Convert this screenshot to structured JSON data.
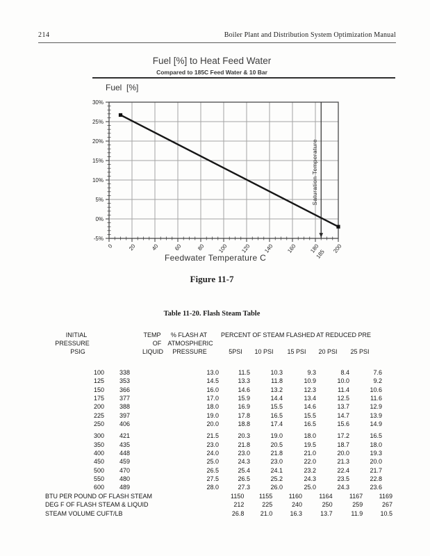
{
  "page": {
    "number": "214",
    "header": "Boiler Plant and Distribution System Optimization Manual"
  },
  "figure": {
    "title": "Fuel [%] to Heat Feed Water",
    "subtitle": "Compared to 185C Feed Water & 10 Bar",
    "y_axis_label": "Fuel  [%]",
    "x_axis_label": "Feedwater Temperature C",
    "caption": "Figure 11-7",
    "annotation": "Saturation Temperature"
  },
  "chart_data": {
    "type": "line",
    "title": "Fuel [%] to Heat Feed Water",
    "subtitle": "Compared to 185C Feed Water & 10 Bar",
    "xlabel": "Feedwater Temperature C",
    "ylabel": "Fuel [%]",
    "xlim": [
      0,
      200
    ],
    "ylim": [
      -5,
      30
    ],
    "x_major_ticks": [
      0,
      20,
      40,
      60,
      80,
      100,
      120,
      140,
      160,
      180,
      200
    ],
    "x_minor_step": 5,
    "y_ticks": [
      30,
      25,
      20,
      15,
      10,
      5,
      0,
      -5
    ],
    "y_tick_suffix": "%",
    "y_minor_step": 1,
    "grid": true,
    "series": [
      {
        "name": "Fuel %",
        "points": [
          [
            10,
            26.7
          ],
          [
            200,
            -2.0
          ]
        ]
      }
    ],
    "annotation": {
      "text": "Saturation Temperature",
      "x": 185,
      "extra_tick_label": "185"
    }
  },
  "table": {
    "title": "Table 11-20. Flash Steam Table",
    "header": {
      "col1": [
        "INITIAL",
        "PRESSURE",
        "PSIG"
      ],
      "col2": [
        "TEMP",
        "OF",
        "LIQUID"
      ],
      "col3": [
        "% FLASH AT",
        "ATMOSPHERIC",
        "PRESSURE"
      ],
      "span": "PERCENT OF STEAM FLASHED AT REDUCED PRE",
      "sub": [
        "5PSI",
        "10 PSI",
        "15 PSI",
        "20 PSI",
        "25 PSI"
      ]
    },
    "rows": [
      [
        "100",
        "338",
        "13.0",
        "11.5",
        "10.3",
        "9.3",
        "8.4",
        "7.6"
      ],
      [
        "125",
        "353",
        "14.5",
        "13.3",
        "11.8",
        "10.9",
        "10.0",
        "9.2"
      ],
      [
        "150",
        "366",
        "16.0",
        "14.6",
        "13.2",
        "12.3",
        "11.4",
        "10.6"
      ],
      [
        "175",
        "377",
        "17.0",
        "15.9",
        "14.4",
        "13.4",
        "12.5",
        "11.6"
      ],
      [
        "200",
        "388",
        "18.0",
        "16.9",
        "15.5",
        "14.6",
        "13.7",
        "12.9"
      ],
      [
        "225",
        "397",
        "19.0",
        "17.8",
        "16.5",
        "15.5",
        "14.7",
        "13.9"
      ],
      [
        "250",
        "406",
        "20.0",
        "18.8",
        "17.4",
        "16.5",
        "15.6",
        "14.9"
      ],
      [
        "300",
        "421",
        "21.5",
        "20.3",
        "19.0",
        "18.0",
        "17.2",
        "16.5"
      ],
      [
        "350",
        "435",
        "23.0",
        "21.8",
        "20.5",
        "19.5",
        "18.7",
        "18.0"
      ],
      [
        "400",
        "448",
        "24.0",
        "23.0",
        "21.8",
        "21.0",
        "20.0",
        "19.3"
      ],
      [
        "450",
        "459",
        "25.0",
        "24.3",
        "23.0",
        "22.0",
        "21.3",
        "20.0"
      ],
      [
        "500",
        "470",
        "26.5",
        "25.4",
        "24.1",
        "23.2",
        "22.4",
        "21.7"
      ],
      [
        "550",
        "480",
        "27.5",
        "26.5",
        "25.2",
        "24.3",
        "23.5",
        "22.8"
      ],
      [
        "600",
        "489",
        "28.0",
        "27.3",
        "26.0",
        "25.0",
        "24.3",
        "23.6"
      ]
    ],
    "summary": [
      {
        "label": "BTU PER POUND OF FLASH STEAM",
        "values": [
          "1150",
          "1155",
          "1160",
          "1164",
          "1167",
          "1169"
        ]
      },
      {
        "label": "DEG F OF FLASH STEAM & LIQUID",
        "values": [
          "212",
          "225",
          "240",
          "250",
          "259",
          "267"
        ]
      },
      {
        "label": "STEAM VOLUME CUFT/LB",
        "values": [
          "26.8",
          "21.0",
          "16.3",
          "13.7",
          "11.9",
          "10.5"
        ]
      }
    ]
  }
}
